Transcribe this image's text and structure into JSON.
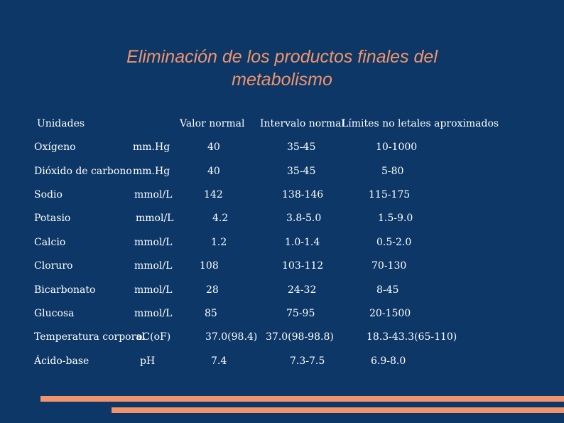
{
  "title": {
    "line1": "Eliminación de los productos finales del",
    "line2": "metabolismo"
  },
  "headers": {
    "units": "Unidades",
    "normal": "Valor normal",
    "interval": "Intervalo normal",
    "limits": "Límites no letales aproximados"
  },
  "rows": [
    {
      "name": "Oxígeno",
      "unit": "mm.Hg",
      "normal": "40",
      "interval": "35-45",
      "limits": "10-1000"
    },
    {
      "name": "Dióxido de carbono",
      "unit": "mm.Hg",
      "normal": "40",
      "interval": "35-45",
      "limits": "5-80"
    },
    {
      "name": "Sodio",
      "unit": "mmol/L",
      "normal": "142",
      "interval": "138-146",
      "limits": "115-175"
    },
    {
      "name": "Potasio",
      "unit": "mmol/L",
      "normal": "4.2",
      "interval": "3.8-5.0",
      "limits": "1.5-9.0"
    },
    {
      "name": "Calcio",
      "unit": "mmol/L",
      "normal": "1.2",
      "interval": "1.0-1.4",
      "limits": "0.5-2.0"
    },
    {
      "name": "Cloruro",
      "unit": "mmol/L",
      "normal": "108",
      "interval": "103-112",
      "limits": "70-130"
    },
    {
      "name": "Bicarbonato",
      "unit": "mmol/L",
      "normal": "28",
      "interval": "24-32",
      "limits": "8-45"
    },
    {
      "name": "Glucosa",
      "unit": "mmol/L",
      "normal": "85",
      "interval": "75-95",
      "limits": "20-1500"
    },
    {
      "name": "Temperatura corporal",
      "unit": "oC(oF)",
      "normal": "37.0(98.4)",
      "interval": "37.0(98-98.8)",
      "limits": "18.3-43.3(65-110)"
    },
    {
      "name": "Ácido-base",
      "unit": "pH",
      "normal": "7.4",
      "interval": "7.3-7.5",
      "limits": "6.9-8.0"
    }
  ],
  "colors": {
    "background": "#0c3766",
    "accent": "#f2946b",
    "text": "#ffffff"
  }
}
